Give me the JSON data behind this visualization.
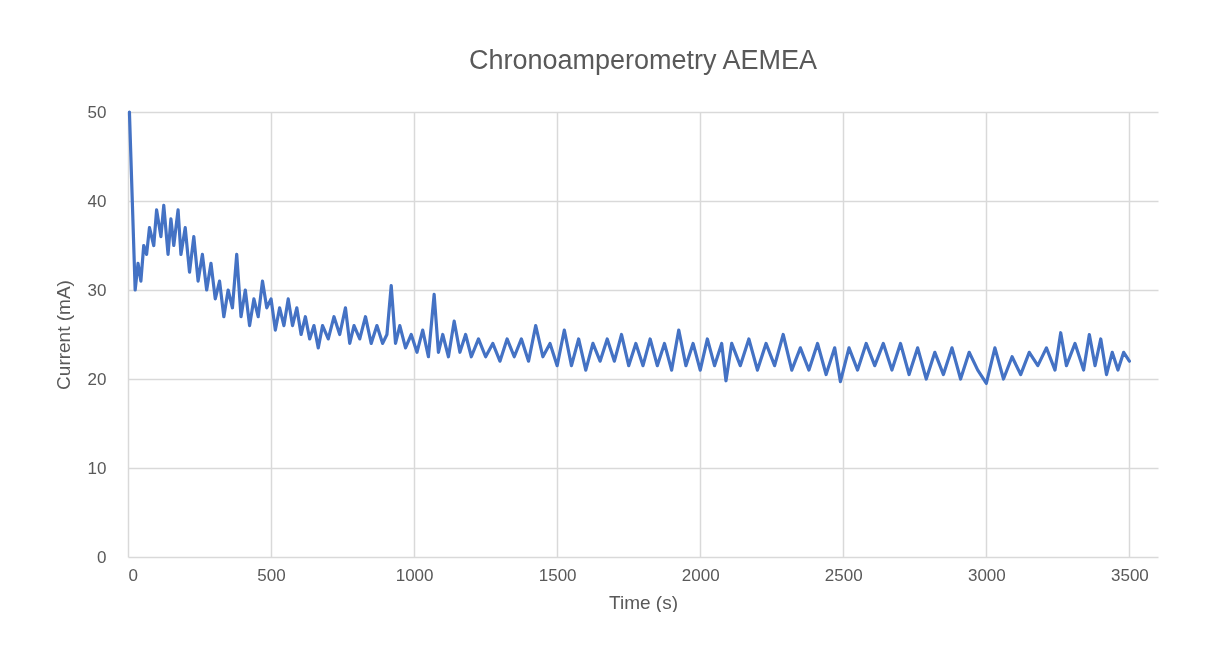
{
  "chart_data": {
    "type": "line",
    "title": "Chronoamperometry AEMEA",
    "xlabel": "Time (s)",
    "ylabel": "Current (mA)",
    "xlim": [
      0,
      3600
    ],
    "xticks": [
      0,
      500,
      1000,
      1500,
      2000,
      2500,
      3000,
      3500
    ],
    "ylim": [
      0,
      50
    ],
    "yticks": [
      0,
      10,
      20,
      30,
      40,
      50
    ],
    "grid": true,
    "marker": "none",
    "line_style": "solid",
    "series": [
      {
        "color": "#4472c4",
        "x": [
          5,
          15,
          25,
          35,
          45,
          55,
          65,
          75,
          90,
          100,
          115,
          125,
          140,
          150,
          160,
          175,
          185,
          200,
          215,
          230,
          245,
          260,
          275,
          290,
          305,
          320,
          335,
          350,
          365,
          380,
          395,
          410,
          425,
          440,
          455,
          470,
          485,
          500,
          515,
          530,
          545,
          560,
          575,
          590,
          605,
          620,
          635,
          650,
          665,
          680,
          700,
          720,
          740,
          760,
          775,
          790,
          810,
          830,
          850,
          870,
          890,
          905,
          920,
          935,
          950,
          970,
          990,
          1010,
          1030,
          1050,
          1070,
          1085,
          1100,
          1120,
          1140,
          1160,
          1180,
          1200,
          1225,
          1250,
          1275,
          1300,
          1325,
          1350,
          1375,
          1400,
          1425,
          1450,
          1475,
          1500,
          1525,
          1550,
          1575,
          1600,
          1625,
          1650,
          1675,
          1700,
          1725,
          1750,
          1775,
          1800,
          1825,
          1850,
          1875,
          1900,
          1925,
          1950,
          1975,
          2000,
          2025,
          2050,
          2075,
          2090,
          2110,
          2140,
          2170,
          2200,
          2230,
          2260,
          2290,
          2320,
          2350,
          2380,
          2410,
          2440,
          2470,
          2490,
          2520,
          2550,
          2580,
          2610,
          2640,
          2670,
          2700,
          2730,
          2760,
          2790,
          2820,
          2850,
          2880,
          2910,
          2940,
          2970,
          3000,
          3030,
          3060,
          3090,
          3120,
          3150,
          3180,
          3210,
          3240,
          3260,
          3280,
          3310,
          3340,
          3360,
          3380,
          3400,
          3420,
          3440,
          3460,
          3480,
          3500
        ],
        "values": [
          50,
          40,
          30,
          33,
          31,
          35,
          34,
          37,
          35,
          39,
          36,
          39.5,
          34,
          38,
          35,
          39,
          34,
          37,
          32,
          36,
          31,
          34,
          30,
          33,
          29,
          31,
          27,
          30,
          28,
          34,
          27,
          30,
          26,
          29,
          27,
          31,
          28,
          29,
          25.5,
          28,
          26,
          29,
          26,
          28,
          25,
          27,
          24.5,
          26,
          23.5,
          26,
          24.5,
          27,
          25,
          28,
          24,
          26,
          24.5,
          27,
          24,
          26,
          24,
          25,
          30.5,
          24,
          26,
          23.5,
          25,
          23,
          25.5,
          22.5,
          29.5,
          23,
          25,
          22.5,
          26.5,
          23,
          25,
          22.5,
          24.5,
          22.5,
          24,
          22,
          24.5,
          22.5,
          24.5,
          22,
          26,
          22.5,
          24,
          21.5,
          25.5,
          21.5,
          24.5,
          21,
          24,
          22,
          24.5,
          22,
          25,
          21.5,
          24,
          21.5,
          24.5,
          21.5,
          24,
          21,
          25.5,
          21.5,
          24,
          21,
          24.5,
          21.5,
          24,
          19.8,
          24,
          21.5,
          24.5,
          21,
          24,
          21.5,
          25,
          21,
          23.5,
          21,
          24,
          20.5,
          23.5,
          19.7,
          23.5,
          21,
          24,
          21.5,
          24,
          21,
          24,
          20.5,
          23.5,
          20,
          23,
          20.5,
          23.5,
          20,
          23,
          21,
          19.5,
          23.5,
          20,
          22.5,
          20.5,
          23,
          21.5,
          23.5,
          21,
          25.2,
          21.5,
          24,
          21,
          25,
          21.5,
          24.5,
          20.5,
          23,
          21,
          23,
          22
        ]
      }
    ]
  }
}
